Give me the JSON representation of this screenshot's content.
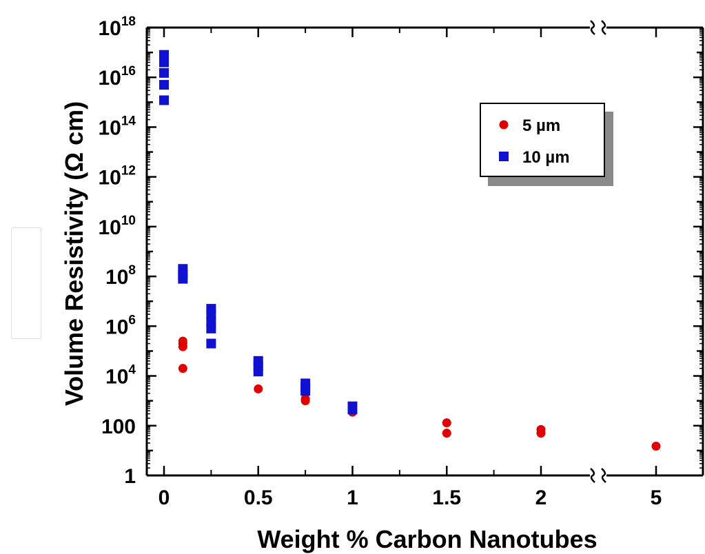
{
  "chart_data": {
    "type": "scatter",
    "title": "",
    "xlabel": "Weight % Carbon Nanotubes",
    "ylabel": "Volume Resistivity (Ω cm)",
    "y_scale": "log",
    "ylim": [
      1,
      1e+18
    ],
    "x_axis_break": "between 2 and 5",
    "x_ticks": [
      "0",
      "0.5",
      "1",
      "1.5",
      "2",
      "5"
    ],
    "y_ticks": [
      {
        "value": 1,
        "base": "1",
        "exp": ""
      },
      {
        "value": 100,
        "base": "100",
        "exp": ""
      },
      {
        "value": 10000,
        "base": "10",
        "exp": "4"
      },
      {
        "value": 1000000,
        "base": "10",
        "exp": "6"
      },
      {
        "value": 100000000,
        "base": "10",
        "exp": "8"
      },
      {
        "value": 10000000000,
        "base": "10",
        "exp": "10"
      },
      {
        "value": 1000000000000,
        "base": "10",
        "exp": "12"
      },
      {
        "value": 100000000000000,
        "base": "10",
        "exp": "14"
      },
      {
        "value": 10000000000000000,
        "base": "10",
        "exp": "16"
      },
      {
        "value": 1000000000000000000,
        "base": "10",
        "exp": "18"
      }
    ],
    "legend": {
      "placement": "top-right",
      "entries": [
        {
          "label": "5 µm",
          "marker": "circle",
          "color": "#e00000"
        },
        {
          "label": "10 µm",
          "marker": "square",
          "color": "#1010d0"
        }
      ]
    },
    "series": [
      {
        "name": "5 µm",
        "marker": "circle",
        "color": "#e00000",
        "points": [
          [
            0.1,
            250000
          ],
          [
            0.1,
            200000
          ],
          [
            0.1,
            150000
          ],
          [
            0.1,
            20000
          ],
          [
            0.5,
            3000
          ],
          [
            0.75,
            1200
          ],
          [
            0.75,
            1000
          ],
          [
            1,
            350
          ],
          [
            1.5,
            130
          ],
          [
            1.5,
            50
          ],
          [
            2,
            70
          ],
          [
            2,
            50
          ],
          [
            5,
            15
          ]
        ]
      },
      {
        "name": "10 µm",
        "marker": "square",
        "color": "#1010d0",
        "points": [
          [
            0,
            80000000000000000
          ],
          [
            0,
            40000000000000000
          ],
          [
            0,
            15000000000000000
          ],
          [
            0,
            5000000000000000
          ],
          [
            0,
            1200000000000000
          ],
          [
            0.1,
            200000000
          ],
          [
            0.1,
            120000000
          ],
          [
            0.1,
            80000000
          ],
          [
            0.25,
            5000000
          ],
          [
            0.25,
            3000000
          ],
          [
            0.25,
            1500000
          ],
          [
            0.25,
            800000
          ],
          [
            0.25,
            200000
          ],
          [
            0.5,
            40000
          ],
          [
            0.5,
            25000
          ],
          [
            0.5,
            15000
          ],
          [
            0.75,
            5000
          ],
          [
            0.75,
            3500
          ],
          [
            0.75,
            2500
          ],
          [
            1,
            600
          ],
          [
            1,
            450
          ]
        ]
      }
    ]
  }
}
